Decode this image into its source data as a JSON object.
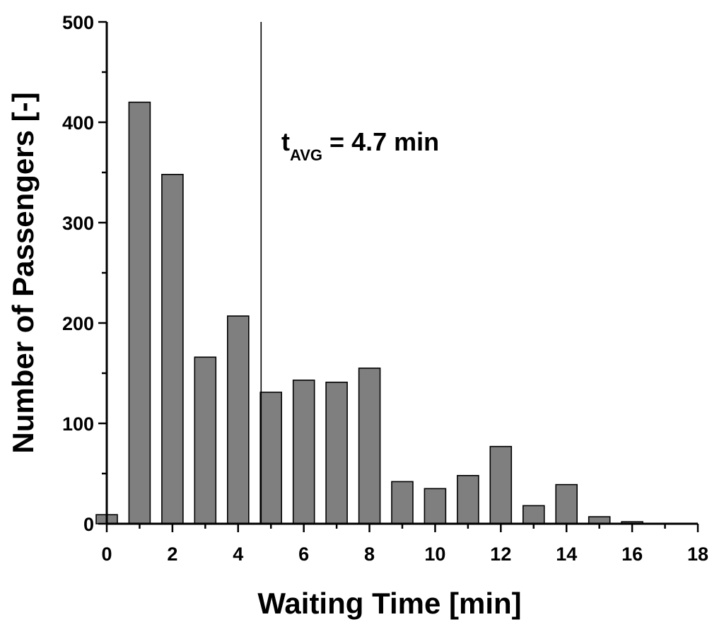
{
  "chart_data": {
    "type": "bar",
    "xlabel": "Waiting Time [min]",
    "ylabel": "Number of Passengers [-]",
    "xlim": [
      0,
      18
    ],
    "ylim": [
      0,
      500
    ],
    "xticks": [
      0,
      2,
      4,
      6,
      8,
      10,
      12,
      14,
      16,
      18
    ],
    "yticks": [
      0,
      100,
      200,
      300,
      400,
      500
    ],
    "x": [
      0,
      1,
      2,
      3,
      4,
      5,
      6,
      7,
      8,
      9,
      10,
      11,
      12,
      13,
      14,
      15,
      16
    ],
    "values": [
      9,
      420,
      348,
      166,
      207,
      131,
      143,
      141,
      155,
      42,
      35,
      48,
      77,
      18,
      39,
      7,
      2
    ],
    "bar_color": "#7f7f7f",
    "average_line": {
      "x": 4.7,
      "label_main": "t",
      "label_sub": "AVG",
      "label_rest": " = 4.7 min"
    },
    "grid": false
  }
}
